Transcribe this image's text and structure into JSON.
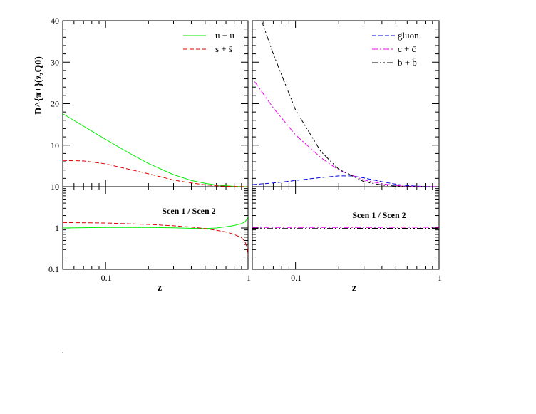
{
  "chart_data": [
    {
      "type": "line",
      "panel": "top-left",
      "ylabel": "D^{π+}(z,Q0)",
      "xscale": "log",
      "xlim": [
        0.05,
        1
      ],
      "ylim": [
        0,
        40
      ],
      "yticks": [
        "0",
        "10",
        "20",
        "30",
        "40"
      ],
      "legend_position": "top-right",
      "series": [
        {
          "name": "u + ū",
          "color": "#00ee00",
          "dash": "solid",
          "x": [
            0.05,
            0.07,
            0.1,
            0.15,
            0.2,
            0.3,
            0.4,
            0.5,
            0.6,
            0.7,
            0.8,
            0.9,
            1.0
          ],
          "y": [
            17.6,
            14.6,
            11.4,
            7.9,
            5.6,
            2.9,
            1.5,
            0.8,
            0.4,
            0.2,
            0.08,
            0.03,
            0.0
          ]
        },
        {
          "name": "s + s̄",
          "color": "#dd0000",
          "dash": "dashed",
          "x": [
            0.05,
            0.07,
            0.1,
            0.15,
            0.2,
            0.3,
            0.4,
            0.5,
            0.6,
            0.7,
            0.8,
            0.9,
            1.0
          ],
          "y": [
            6.3,
            6.2,
            5.5,
            4.1,
            3.1,
            1.6,
            0.9,
            0.45,
            0.2,
            0.1,
            0.05,
            0.02,
            0.0
          ]
        }
      ]
    },
    {
      "type": "line",
      "panel": "top-right",
      "xscale": "log",
      "xlim": [
        0.05,
        1
      ],
      "ylim": [
        0,
        40
      ],
      "legend_position": "top-right",
      "series": [
        {
          "name": "gluon",
          "color": "#0000dd",
          "dash": "dashed",
          "x": [
            0.05,
            0.07,
            0.1,
            0.15,
            0.2,
            0.25,
            0.3,
            0.4,
            0.5,
            0.6,
            0.8,
            1.0
          ],
          "y": [
            0.5,
            0.9,
            1.5,
            2.2,
            2.6,
            2.6,
            2.1,
            1.2,
            0.6,
            0.25,
            0.05,
            0.0
          ]
        },
        {
          "name": "c + c̄",
          "color": "#ee00ee",
          "dash": "dashdot",
          "x": [
            0.052,
            0.07,
            0.1,
            0.15,
            0.2,
            0.3,
            0.4,
            0.5,
            0.6,
            0.8,
            1.0
          ],
          "y": [
            25.3,
            19.0,
            12.5,
            7.0,
            4.0,
            1.6,
            0.7,
            0.3,
            0.1,
            0.02,
            0.0
          ]
        },
        {
          "name": "b + b̄",
          "color": "#000000",
          "dash": "dashdotdot",
          "x": [
            0.058,
            0.07,
            0.1,
            0.15,
            0.2,
            0.3,
            0.4,
            0.5,
            0.6,
            0.8,
            1.0
          ],
          "y": [
            40.0,
            32.0,
            18.5,
            8.5,
            4.2,
            1.2,
            0.4,
            0.15,
            0.05,
            0.01,
            0.0
          ]
        }
      ]
    },
    {
      "type": "line",
      "panel": "bottom-left",
      "title": "Scen 1 / Scen 2",
      "xlabel": "z",
      "xscale": "log",
      "yscale": "log",
      "xlim": [
        0.05,
        1
      ],
      "ylim": [
        0.1,
        10
      ],
      "xticks": [
        "0.1",
        "1"
      ],
      "yticks": [
        "0.1",
        "1",
        "10"
      ],
      "series": [
        {
          "name": "u + ū",
          "color": "#00ee00",
          "dash": "solid",
          "x": [
            0.05,
            0.1,
            0.2,
            0.3,
            0.4,
            0.5,
            0.6,
            0.7,
            0.8,
            0.9,
            0.95,
            0.98,
            1.0
          ],
          "y": [
            1.0,
            1.03,
            1.03,
            1.01,
            0.98,
            0.97,
            1.0,
            1.07,
            1.15,
            1.28,
            1.4,
            1.6,
            1.9
          ]
        },
        {
          "name": "s + s̄",
          "color": "#dd0000",
          "dash": "dashed",
          "x": [
            0.05,
            0.1,
            0.2,
            0.3,
            0.4,
            0.5,
            0.6,
            0.7,
            0.8,
            0.9,
            0.95,
            0.98,
            1.0
          ],
          "y": [
            1.35,
            1.32,
            1.22,
            1.13,
            1.05,
            0.97,
            0.88,
            0.8,
            0.7,
            0.58,
            0.48,
            0.35,
            0.22
          ]
        }
      ]
    },
    {
      "type": "line",
      "panel": "bottom-right",
      "title": "Scen 1 / Scen 2",
      "xlabel": "z",
      "xscale": "log",
      "yscale": "log",
      "xlim": [
        0.05,
        1
      ],
      "ylim": [
        0.1,
        10
      ],
      "xticks": [
        "0.1",
        "1"
      ],
      "series": [
        {
          "name": "gluon",
          "color": "#0000dd",
          "dash": "dashed",
          "x": [
            0.05,
            0.1,
            0.3,
            0.6,
            1.0
          ],
          "y": [
            1.06,
            1.06,
            1.06,
            1.06,
            1.06
          ]
        },
        {
          "name": "c + c̄",
          "color": "#ee00ee",
          "dash": "dashdot",
          "x": [
            0.05,
            0.1,
            0.3,
            0.6,
            1.0
          ],
          "y": [
            1.03,
            1.03,
            1.03,
            1.04,
            1.04
          ]
        },
        {
          "name": "b + b̄",
          "color": "#000000",
          "dash": "dashdotdot",
          "x": [
            0.05,
            0.1,
            0.3,
            0.6,
            1.0
          ],
          "y": [
            0.97,
            0.97,
            0.98,
            0.98,
            0.98
          ]
        }
      ]
    }
  ],
  "footer_mark": "."
}
